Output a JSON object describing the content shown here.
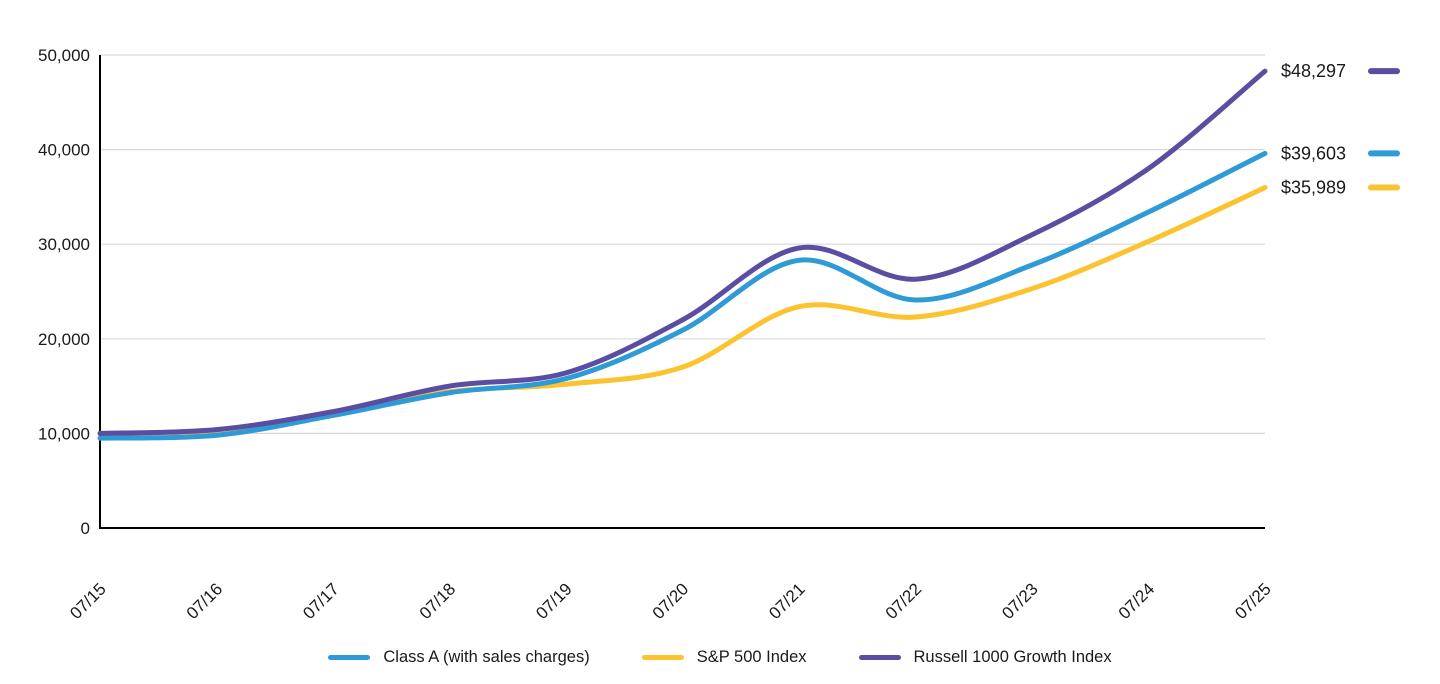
{
  "chart_data": {
    "type": "line",
    "x": [
      "07/15",
      "07/16",
      "07/17",
      "07/18",
      "07/19",
      "07/20",
      "07/21",
      "07/22",
      "07/23",
      "07/24",
      "07/25"
    ],
    "series": [
      {
        "name": "Class A (with sales charges)",
        "color": "#2E9BD6",
        "end_label": "$39,603",
        "values": [
          9500,
          9800,
          11900,
          14300,
          15800,
          20900,
          28300,
          24100,
          27800,
          33400,
          39603
        ]
      },
      {
        "name": "S&P 500 Index",
        "color": "#FCC330",
        "end_label": "$35,989",
        "values": [
          10000,
          10300,
          12100,
          14400,
          15200,
          17000,
          23400,
          22300,
          25300,
          30300,
          35989
        ]
      },
      {
        "name": "Russell 1000 Growth Index",
        "color": "#5A4DA2",
        "end_label": "$48,297",
        "values": [
          10000,
          10400,
          12300,
          15000,
          16400,
          22000,
          29600,
          26300,
          31000,
          38000,
          48297
        ]
      }
    ],
    "draw_order": [
      1,
      0,
      2
    ],
    "ylim": [
      0,
      50000
    ],
    "y_ticks": [
      0,
      10000,
      20000,
      30000,
      40000,
      50000
    ],
    "y_tick_labels": [
      "0",
      "10,000",
      "20,000",
      "30,000",
      "40,000",
      "50,000"
    ],
    "grid": "horizontal",
    "legend_position": "bottom",
    "title": "",
    "xlabel": "",
    "ylabel": ""
  },
  "colors": {
    "grid": "#d9d9d9",
    "axis": "#000000",
    "text": "#1a1a1a",
    "background": "#ffffff"
  }
}
